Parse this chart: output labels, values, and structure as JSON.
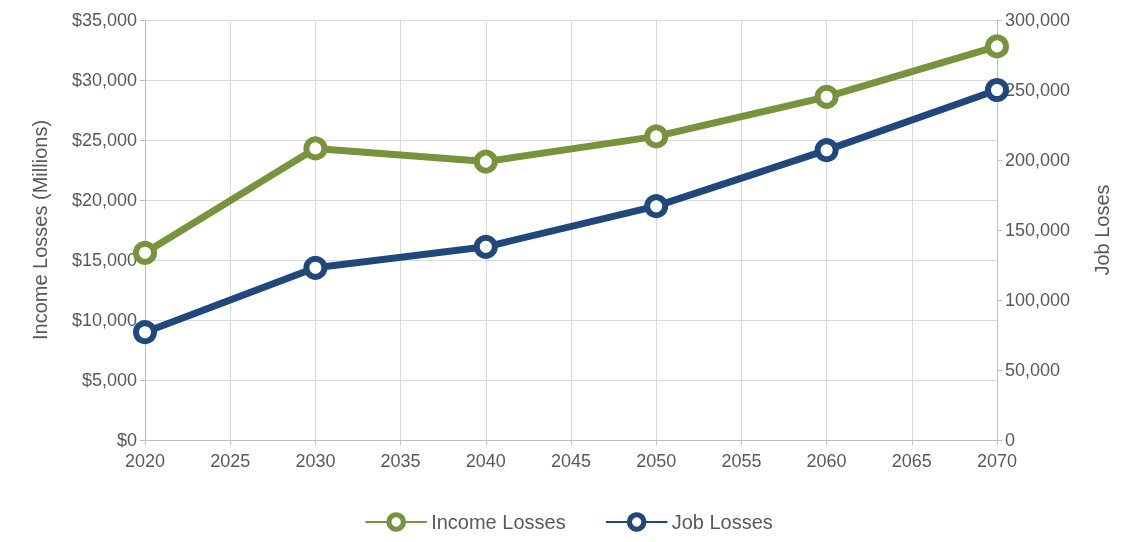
{
  "chart_data": {
    "type": "line",
    "ylabel": "Income Losses (Millions)",
    "y2label": "Job Loses",
    "x": [
      2020,
      2030,
      2040,
      2050,
      2060,
      2070
    ],
    "series": [
      {
        "name": "Income Losses",
        "color": "#77933c",
        "values": [
          15600,
          24300,
          23200,
          25300,
          28600,
          32800
        ]
      },
      {
        "name": "Job Losses",
        "color": "#1f497d",
        "axis": "y2",
        "values": [
          77000,
          123000,
          138000,
          167000,
          207000,
          250000
        ]
      }
    ],
    "xlim": [
      2020,
      2070
    ],
    "xticks": [
      2020,
      2025,
      2030,
      2035,
      2040,
      2045,
      2050,
      2055,
      2060,
      2065,
      2070
    ],
    "ylim": [
      0,
      35000
    ],
    "yticks": [
      {
        "value": 0,
        "label": "$0"
      },
      {
        "value": 5000,
        "label": "$5,000"
      },
      {
        "value": 10000,
        "label": "$10,000"
      },
      {
        "value": 15000,
        "label": "$15,000"
      },
      {
        "value": 20000,
        "label": "$20,000"
      },
      {
        "value": 25000,
        "label": "$25,000"
      },
      {
        "value": 30000,
        "label": "$30,000"
      },
      {
        "value": 35000,
        "label": "$35,000"
      }
    ],
    "y2lim": [
      0,
      300000
    ],
    "y2ticks": [
      0,
      {
        "value": 50000,
        "label": "50,000"
      },
      {
        "value": 100000,
        "label": "100,000"
      },
      {
        "value": 150000,
        "label": "150,000"
      },
      {
        "value": 200000,
        "label": "200,000"
      },
      {
        "value": 250000,
        "label": "250,000"
      },
      {
        "value": 300000,
        "label": "300,000"
      }
    ],
    "grid": true,
    "legend": "bottom",
    "marker": "circle",
    "line_style": "solid"
  }
}
